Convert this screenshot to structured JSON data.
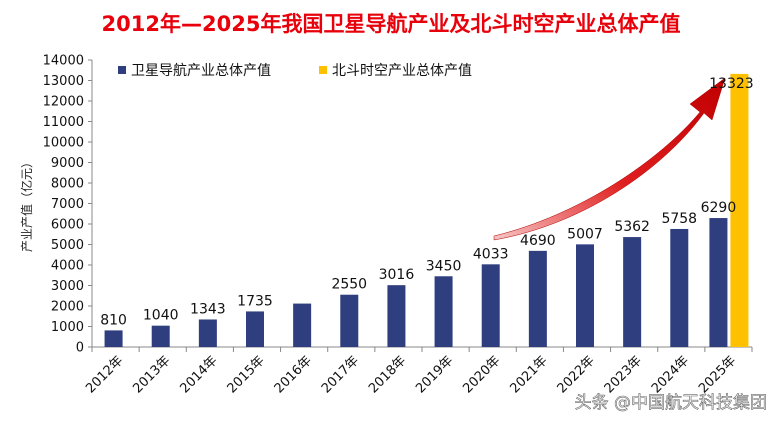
{
  "chart_data": {
    "type": "bar",
    "title": "2012年—2025年我国卫星导航产业及北斗时空产业总体产值",
    "ylabel": "产业产值（亿元）",
    "xlabel": "",
    "ylim": [
      0,
      14000
    ],
    "yticks": [
      0,
      1000,
      2000,
      3000,
      4000,
      5000,
      6000,
      7000,
      8000,
      9000,
      10000,
      11000,
      12000,
      13000,
      14000
    ],
    "categories": [
      "2012年",
      "2013年",
      "2014年",
      "2015年",
      "2016年",
      "2017年",
      "2018年",
      "2019年",
      "2020年",
      "2021年",
      "2022年",
      "2023年",
      "2024年",
      "2025年"
    ],
    "series": [
      {
        "name": "卫星导航产业总体产值",
        "color": "#2e3e7e",
        "values": [
          810,
          1040,
          1343,
          1735,
          2118,
          2550,
          3016,
          3450,
          4033,
          4690,
          5007,
          5362,
          5758,
          6290
        ],
        "labels": [
          "810",
          "1040",
          "1343",
          "1735",
          "",
          "2550",
          "3016",
          "3450",
          "4033",
          "4690",
          "5007",
          "5362",
          "5758",
          "6290"
        ]
      },
      {
        "name": "北斗时空产业总体产值",
        "color": "#ffc000",
        "values": [
          null,
          null,
          null,
          null,
          null,
          null,
          null,
          null,
          null,
          null,
          null,
          null,
          null,
          13323
        ],
        "labels": [
          "",
          "",
          "",
          "",
          "",
          "",
          "",
          "",
          "",
          "",
          "",
          "",
          "",
          "13323"
        ]
      }
    ],
    "legend": "top-left",
    "grid": false,
    "title_color": "#e8000b",
    "arrow_color": "#e00000"
  },
  "watermark": "头条 @中国航天科技集团"
}
